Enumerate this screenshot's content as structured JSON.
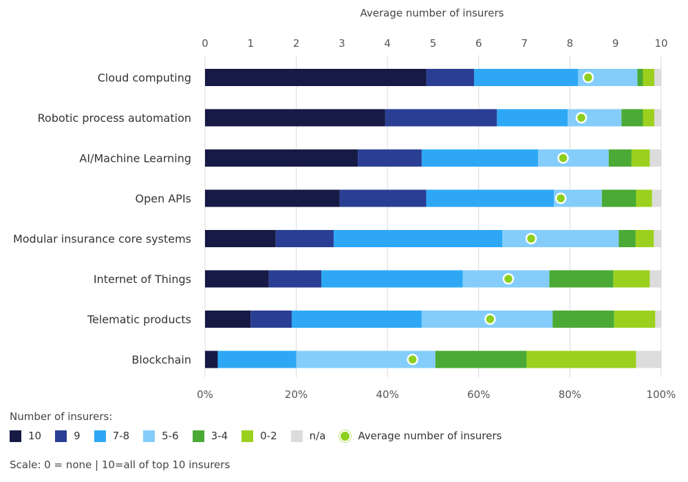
{
  "chart_data": {
    "type": "bar",
    "orientation": "horizontal",
    "stacked": true,
    "top_axis_title": "Average number of insurers",
    "top_axis_ticks": [
      "0",
      "1",
      "2",
      "3",
      "4",
      "5",
      "6",
      "7",
      "8",
      "9",
      "10"
    ],
    "bottom_axis_ticks": [
      "0%",
      "20%",
      "40%",
      "60%",
      "80%",
      "100%"
    ],
    "categories": [
      "Cloud computing",
      "Robotic process automation",
      "AI/Machine Learning",
      "Open APIs",
      "Modular insurance core systems",
      "Internet of Things",
      "Telematic products",
      "Blockchain"
    ],
    "series": [
      {
        "name": "10",
        "color": "#161a45",
        "values": [
          48.5,
          39.5,
          33.5,
          29.5,
          15.5,
          14.0,
          10.0,
          2.8
        ]
      },
      {
        "name": "9",
        "color": "#2a3f94",
        "values": [
          10.5,
          24.5,
          14.0,
          19.0,
          12.7,
          11.5,
          9.0,
          0.0
        ]
      },
      {
        "name": "7-8",
        "color": "#2ea8f5",
        "values": [
          22.8,
          15.5,
          25.5,
          28.0,
          37.0,
          31.0,
          28.5,
          17.2
        ]
      },
      {
        "name": "5-6",
        "color": "#84cdfa",
        "values": [
          13.0,
          11.8,
          15.5,
          10.5,
          25.5,
          19.0,
          28.7,
          30.5
        ]
      },
      {
        "name": "3-4",
        "color": "#4aaa35",
        "values": [
          1.2,
          4.7,
          5.0,
          7.5,
          3.7,
          14.0,
          13.5,
          20.0
        ]
      },
      {
        "name": "0-2",
        "color": "#9bd11e",
        "values": [
          2.5,
          2.5,
          4.0,
          3.5,
          4.0,
          8.0,
          9.0,
          24.0
        ]
      },
      {
        "name": "n/a",
        "color": "#dcdcdc",
        "values": [
          1.5,
          1.5,
          2.5,
          2.0,
          1.6,
          2.5,
          1.3,
          5.5
        ]
      }
    ],
    "average": {
      "name": "Average number of insurers",
      "color": "#8ccf1e",
      "values": [
        8.4,
        8.25,
        7.85,
        7.8,
        7.15,
        6.65,
        6.25,
        4.55
      ]
    },
    "xlim_percent": [
      0,
      100
    ],
    "xlim_avg": [
      0,
      10
    ],
    "grid": true,
    "legend_position": "bottom-left"
  },
  "legend": {
    "title": "Number of insurers:",
    "items": [
      {
        "label": "10",
        "color": "#161a45"
      },
      {
        "label": "9",
        "color": "#2a3f94"
      },
      {
        "label": "7-8",
        "color": "#2ea8f5"
      },
      {
        "label": "5-6",
        "color": "#84cdfa"
      },
      {
        "label": "3-4",
        "color": "#4aaa35"
      },
      {
        "label": "0-2",
        "color": "#9bd11e"
      },
      {
        "label": "n/a",
        "color": "#dcdcdc"
      }
    ],
    "average_label": "Average number of insurers"
  },
  "scale_note": "Scale: 0 = none | 10=all of top 10 insurers"
}
